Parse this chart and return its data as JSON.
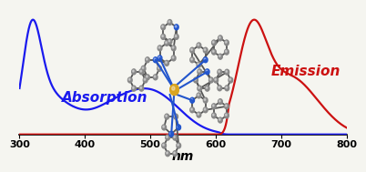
{
  "title": "",
  "xlabel": "nm",
  "xlim": [
    300,
    800
  ],
  "ylim": [
    0,
    1.08
  ],
  "xticks": [
    300,
    400,
    500,
    600,
    700,
    800
  ],
  "background_color": "#f5f5f0",
  "absorption_color": "#1a1aee",
  "emission_color": "#cc1111",
  "absorption_label": "Absorption",
  "emission_label": "Emission",
  "label_fontsize": 11,
  "xlabel_fontsize": 10,
  "tick_fontsize": 8
}
